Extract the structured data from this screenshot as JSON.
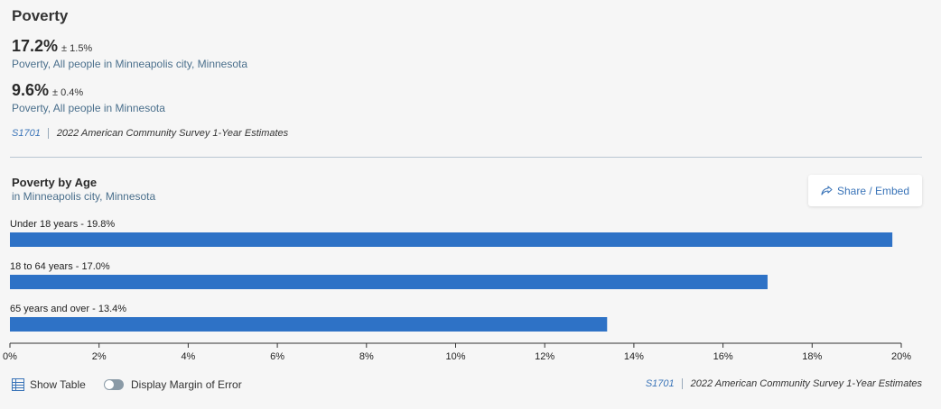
{
  "section": {
    "title": "Poverty"
  },
  "stats": [
    {
      "value": "17.2%",
      "moe": "± 1.5%",
      "description": "Poverty, All people in Minneapolis city, Minnesota"
    },
    {
      "value": "9.6%",
      "moe": "± 0.4%",
      "description": "Poverty, All people in Minnesota"
    }
  ],
  "source": {
    "code": "S1701",
    "text": "2022 American Community Survey 1-Year Estimates"
  },
  "chart_section": {
    "title": "Poverty by Age",
    "subtitle": "in Minneapolis city, Minnesota",
    "share_label": "Share / Embed"
  },
  "chart_data": {
    "type": "bar",
    "orientation": "horizontal",
    "title": "Poverty by Age",
    "subtitle": "in Minneapolis city, Minnesota",
    "categories": [
      "Under 18 years",
      "18 to 64 years",
      "65 years and over"
    ],
    "values": [
      19.8,
      17.0,
      13.4
    ],
    "labels": [
      "Under 18 years - 19.8%",
      "18 to 64 years - 17.0%",
      "65 years and over - 13.4%"
    ],
    "xlim": [
      0,
      20
    ],
    "x_ticks": [
      0,
      2,
      4,
      6,
      8,
      10,
      12,
      14,
      16,
      18,
      20
    ],
    "x_tick_labels": [
      "0%",
      "2%",
      "4%",
      "6%",
      "8%",
      "10%",
      "12%",
      "14%",
      "16%",
      "18%",
      "20%"
    ],
    "bar_color": "#2e72c6",
    "grid": false
  },
  "controls": {
    "show_table_label": "Show Table",
    "margin_of_error_label": "Display Margin of Error"
  },
  "colors": {
    "accent": "#3a74b8",
    "bar": "#2e72c6",
    "desc": "#4a6f8c"
  }
}
